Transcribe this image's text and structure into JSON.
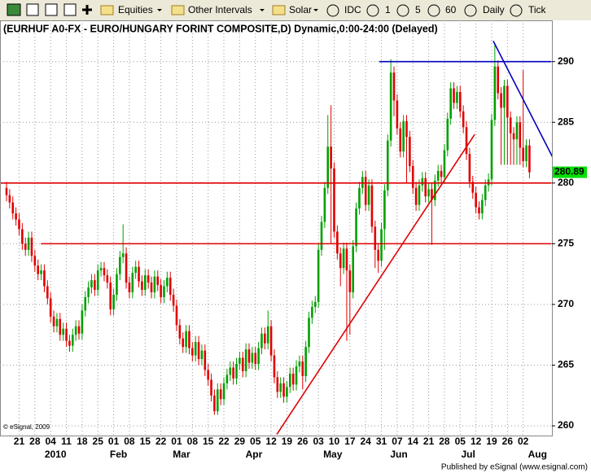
{
  "toolbar": {
    "items": [
      "Equities",
      "Other Intervals",
      "Solar",
      "IDC",
      "1",
      "5",
      "60",
      "Daily",
      "Tick"
    ]
  },
  "footer": "Published by eSignal (www.esignal.com)",
  "chart_data": {
    "type": "candlestick",
    "title": "(EURHUF A0-FX - EURO/HUNGARY FORINT COMPOSITE,D) Dynamic,0:00-24:00 (Delayed)",
    "copyright": "© eSignal, 2009",
    "up_color": "#00a000",
    "down_color": "#e00000",
    "grid": true,
    "ylim": [
      259.2,
      293.4
    ],
    "yticks": [
      260,
      265,
      270,
      275,
      280,
      285,
      290
    ],
    "categories": [
      null,
      null,
      null,
      null,
      "21",
      null,
      null,
      null,
      null,
      "28",
      null,
      null,
      null,
      null,
      "04",
      null,
      null,
      null,
      null,
      "11",
      null,
      null,
      null,
      null,
      "18",
      null,
      null,
      null,
      null,
      "25",
      null,
      null,
      null,
      null,
      "01",
      null,
      null,
      null,
      null,
      "08",
      null,
      null,
      null,
      null,
      "15",
      null,
      null,
      null,
      null,
      "22",
      null,
      null,
      null,
      null,
      "01",
      null,
      null,
      null,
      null,
      "08",
      null,
      null,
      null,
      null,
      "15",
      null,
      null,
      null,
      null,
      "22",
      null,
      null,
      null,
      null,
      "29",
      null,
      null,
      null,
      null,
      "05",
      null,
      null,
      null,
      null,
      "12",
      null,
      null,
      null,
      null,
      "19",
      null,
      null,
      null,
      null,
      "26",
      null,
      null,
      null,
      null,
      "03",
      null,
      null,
      null,
      null,
      "10",
      null,
      null,
      null,
      null,
      "17",
      null,
      null,
      null,
      null,
      "24",
      null,
      null,
      null,
      null,
      "31",
      null,
      null,
      null,
      null,
      "07",
      null,
      null,
      null,
      null,
      "14",
      null,
      null,
      null,
      null,
      "21",
      null,
      null,
      null,
      null,
      "28",
      null,
      null,
      null,
      null,
      "05",
      null,
      null,
      null,
      null,
      "12",
      null,
      null,
      null,
      null,
      "19",
      null,
      null,
      null,
      null,
      "26",
      null,
      null,
      null,
      null,
      "02",
      null,
      null
    ],
    "category_months": [
      null,
      null,
      null,
      null,
      null,
      null,
      null,
      null,
      null,
      null,
      null,
      null,
      null,
      null,
      "2010",
      null,
      null,
      null,
      null,
      null,
      null,
      null,
      null,
      null,
      null,
      null,
      null,
      null,
      null,
      null,
      null,
      null,
      null,
      null,
      "Feb",
      null,
      null,
      null,
      null,
      null,
      null,
      null,
      null,
      null,
      null,
      null,
      null,
      null,
      null,
      null,
      null,
      null,
      null,
      null,
      "Mar",
      null,
      null,
      null,
      null,
      null,
      null,
      null,
      null,
      null,
      null,
      null,
      null,
      null,
      null,
      null,
      null,
      null,
      null,
      null,
      null,
      null,
      null,
      "Apr",
      null,
      null,
      null,
      null,
      null,
      null,
      null,
      null,
      null,
      null,
      null,
      null,
      null,
      null,
      null,
      null,
      null,
      null,
      null,
      null,
      null,
      null,
      null,
      null,
      "May",
      null,
      null,
      null,
      null,
      null,
      null,
      null,
      null,
      null,
      null,
      null,
      null,
      null,
      null,
      null,
      null,
      null,
      null,
      null,
      null,
      "Jun",
      null,
      null,
      null,
      null,
      null,
      null,
      null,
      null,
      null,
      null,
      null,
      null,
      null,
      null,
      null,
      null,
      null,
      null,
      null,
      null,
      null,
      "Jul",
      null,
      null,
      null,
      null,
      null,
      null,
      null,
      null,
      null,
      null,
      null,
      null,
      null,
      null,
      null,
      null,
      null,
      null,
      null,
      null,
      null,
      "Aug",
      null,
      null
    ],
    "candles": {
      "open": [
        279.6,
        279.0,
        278.4,
        277.5,
        277.0,
        276.2,
        275.0,
        274.5,
        275.5,
        274.0,
        273.2,
        272.5,
        272.8,
        271.5,
        270.5,
        269.0,
        268.2,
        268.8,
        267.5,
        268.0,
        267.0,
        266.6,
        267.5,
        268.2,
        267.6,
        269.5,
        270.6,
        271.4,
        272.0,
        271.2,
        272.8,
        273.0,
        272.4,
        271.8,
        269.6,
        270.8,
        272.5,
        273.9,
        274.2,
        271.8,
        271.0,
        272.6,
        273.1,
        271.9,
        271.2,
        272.4,
        271.8,
        271.0,
        272.3,
        271.6,
        270.6,
        271.5,
        272.2,
        270.8,
        269.9,
        268.3,
        267.2,
        266.5,
        267.8,
        266.4,
        265.8,
        266.9,
        265.5,
        266.2,
        264.6,
        263.8,
        262.5,
        261.2,
        263.0,
        262.2,
        263.5,
        264.2,
        264.8,
        263.9,
        265.1,
        265.6,
        264.5,
        266.3,
        265.2,
        266.0,
        265.1,
        266.4,
        267.6,
        266.8,
        268.2,
        265.8,
        264.0,
        262.8,
        263.5,
        262.4,
        263.2,
        264.3,
        263.4,
        264.9,
        265.3,
        264.1,
        266.5,
        268.9,
        269.8,
        270.2,
        274.5,
        276.8,
        279.6,
        283.0,
        281.2,
        276.0,
        274.2,
        273.0,
        274.6,
        272.8,
        271.0,
        274.8,
        277.9,
        279.6,
        280.5,
        278.2,
        279.8,
        276.4,
        274.5,
        273.6,
        276.2,
        279.4,
        283.5,
        289.1,
        286.8,
        284.5,
        282.6,
        285.1,
        283.8,
        281.4,
        279.6,
        278.2,
        279.8,
        280.4,
        278.9,
        279.5,
        278.6,
        280.2,
        281.0,
        280.5,
        282.7,
        285.3,
        287.8,
        286.6,
        287.5,
        285.9,
        284.6,
        282.4,
        280.1,
        279.2,
        278.0,
        277.5,
        278.6,
        279.8,
        280.3,
        285.2,
        289.6,
        287.4,
        286.2,
        288.0,
        285.4,
        284.1,
        283.6,
        285.0,
        282.9,
        281.8,
        283.1
      ],
      "high": [
        280.1,
        279.5,
        278.9,
        278.0,
        277.5,
        276.7,
        275.5,
        276.0,
        276.0,
        274.5,
        273.7,
        273.3,
        273.3,
        272.0,
        271.0,
        269.5,
        269.3,
        269.3,
        268.5,
        268.5,
        267.5,
        268.0,
        268.7,
        268.7,
        270.0,
        271.1,
        271.9,
        272.5,
        272.5,
        273.3,
        273.5,
        273.5,
        272.9,
        272.3,
        271.3,
        273.0,
        274.4,
        276.6,
        274.7,
        272.3,
        273.1,
        273.6,
        273.6,
        272.4,
        272.9,
        272.9,
        272.3,
        272.8,
        272.8,
        272.1,
        272.0,
        272.7,
        272.7,
        271.3,
        270.4,
        268.8,
        267.7,
        268.3,
        268.3,
        266.9,
        267.4,
        267.4,
        266.7,
        266.7,
        265.1,
        264.3,
        263.0,
        263.5,
        263.5,
        264.0,
        264.7,
        265.3,
        265.3,
        265.6,
        266.1,
        266.1,
        266.8,
        266.8,
        266.5,
        266.5,
        266.9,
        268.1,
        268.1,
        269.5,
        268.7,
        266.3,
        264.5,
        264.0,
        264.0,
        263.7,
        264.8,
        264.8,
        265.4,
        265.8,
        265.8,
        267.0,
        269.4,
        270.3,
        270.7,
        275.0,
        277.3,
        280.1,
        285.6,
        286.4,
        281.7,
        276.5,
        274.7,
        275.1,
        275.1,
        273.3,
        275.3,
        278.4,
        280.1,
        281.0,
        281.0,
        280.3,
        280.3,
        276.9,
        275.0,
        276.7,
        279.9,
        284.0,
        290.2,
        289.6,
        287.3,
        285.0,
        285.6,
        285.6,
        284.3,
        281.9,
        280.1,
        280.3,
        280.9,
        280.9,
        280.0,
        280.0,
        280.7,
        281.5,
        281.5,
        283.2,
        285.8,
        288.3,
        288.3,
        288.0,
        288.0,
        286.4,
        285.1,
        282.9,
        280.6,
        279.7,
        278.5,
        279.1,
        280.3,
        280.8,
        285.7,
        291.5,
        290.1,
        287.9,
        288.5,
        288.5,
        285.9,
        284.6,
        285.5,
        285.5,
        289.3,
        283.6,
        283.6
      ],
      "low": [
        278.5,
        277.9,
        277.0,
        276.5,
        275.7,
        274.5,
        274.0,
        274.0,
        273.5,
        272.7,
        272.0,
        272.0,
        271.0,
        270.0,
        268.5,
        267.7,
        267.7,
        267.0,
        267.0,
        266.5,
        266.1,
        266.1,
        267.0,
        267.1,
        267.1,
        269.0,
        270.1,
        270.9,
        270.7,
        270.7,
        272.3,
        271.9,
        271.3,
        269.1,
        269.1,
        270.3,
        272.0,
        273.4,
        271.3,
        270.5,
        270.5,
        272.1,
        271.4,
        270.7,
        270.7,
        271.3,
        270.5,
        270.5,
        271.1,
        270.1,
        270.1,
        271.0,
        270.3,
        269.4,
        267.8,
        266.7,
        266.0,
        266.0,
        265.9,
        265.3,
        265.3,
        265.0,
        265.0,
        264.1,
        263.3,
        262.0,
        260.9,
        260.9,
        261.7,
        261.7,
        263.0,
        263.7,
        263.4,
        263.4,
        264.6,
        264.0,
        264.0,
        264.7,
        264.7,
        264.6,
        264.6,
        265.9,
        266.3,
        266.3,
        265.3,
        263.5,
        262.3,
        262.3,
        261.9,
        261.9,
        262.7,
        262.9,
        262.9,
        264.4,
        263.0,
        263.6,
        266.0,
        268.4,
        269.3,
        269.7,
        274.0,
        276.3,
        279.1,
        275.0,
        275.5,
        273.7,
        271.5,
        272.5,
        267.0,
        267.5,
        270.5,
        274.3,
        277.4,
        279.1,
        277.7,
        277.7,
        275.9,
        273.0,
        272.6,
        273.1,
        274.5,
        278.9,
        283.0,
        285.5,
        284.0,
        282.1,
        282.1,
        280.0,
        280.9,
        279.1,
        277.7,
        277.7,
        279.3,
        278.4,
        278.4,
        274.9,
        278.1,
        279.7,
        280.0,
        280.0,
        282.2,
        284.8,
        286.1,
        286.1,
        285.4,
        284.1,
        281.9,
        279.6,
        278.7,
        277.5,
        277.0,
        277.0,
        278.1,
        279.3,
        279.8,
        284.7,
        286.9,
        281.5,
        281.5,
        281.5,
        281.5,
        281.5,
        281.5,
        281.5,
        281.3,
        281.3,
        280.4
      ],
      "close": [
        279.0,
        278.4,
        277.5,
        277.0,
        276.2,
        275.0,
        274.5,
        275.5,
        274.0,
        273.2,
        272.5,
        272.8,
        271.5,
        270.5,
        269.0,
        268.2,
        268.8,
        267.5,
        268.0,
        267.0,
        266.6,
        267.5,
        268.2,
        267.6,
        269.5,
        270.6,
        271.4,
        272.0,
        271.2,
        272.8,
        273.0,
        272.4,
        271.8,
        269.6,
        270.8,
        272.5,
        273.9,
        274.2,
        271.8,
        271.0,
        272.6,
        273.1,
        271.9,
        271.2,
        272.4,
        271.8,
        271.0,
        272.3,
        271.6,
        270.6,
        271.5,
        272.2,
        270.8,
        269.9,
        268.3,
        267.2,
        266.5,
        267.8,
        266.4,
        265.8,
        266.9,
        265.5,
        266.2,
        264.6,
        263.8,
        262.5,
        261.2,
        263.0,
        262.2,
        263.5,
        264.2,
        264.8,
        263.9,
        265.1,
        265.6,
        264.5,
        266.3,
        265.2,
        266.0,
        265.1,
        266.4,
        267.6,
        266.8,
        268.2,
        265.8,
        264.0,
        262.8,
        263.5,
        262.4,
        263.2,
        264.3,
        263.4,
        264.9,
        265.3,
        264.1,
        266.5,
        268.9,
        269.8,
        270.2,
        274.5,
        276.8,
        279.6,
        283.0,
        281.2,
        276.0,
        274.2,
        273.0,
        274.6,
        272.8,
        271.0,
        274.8,
        277.9,
        279.6,
        280.5,
        278.2,
        279.8,
        276.4,
        274.5,
        273.6,
        276.2,
        279.4,
        283.5,
        289.1,
        286.8,
        284.5,
        282.6,
        285.1,
        283.8,
        281.4,
        279.6,
        278.2,
        279.8,
        280.4,
        278.9,
        279.5,
        278.6,
        280.2,
        281.0,
        280.5,
        282.7,
        285.3,
        287.8,
        286.6,
        287.5,
        285.9,
        284.6,
        282.4,
        280.1,
        279.2,
        278.0,
        277.5,
        278.6,
        279.8,
        280.3,
        285.2,
        289.6,
        287.4,
        286.2,
        288.0,
        285.4,
        284.1,
        283.6,
        285.0,
        282.9,
        281.8,
        283.1,
        280.89
      ]
    },
    "last_price_color": "#00e000",
    "trend_lines": [
      {
        "color": "#e00000",
        "x": [
          -2,
          173
        ],
        "y": [
          280,
          280
        ]
      },
      {
        "color": "#e00000",
        "x": [
          10.9,
          173
        ],
        "y": [
          275,
          275
        ]
      },
      {
        "color": "#0000c0",
        "x": [
          118.3,
          173
        ],
        "y": [
          290,
          290
        ]
      },
      {
        "color": "#e00000",
        "x": [
          85.8,
          148.6
        ],
        "y": [
          259.3,
          284.0
        ]
      },
      {
        "color": "#0000c0",
        "x": [
          154.5,
          174.2
        ],
        "y": [
          291.7,
          281.7
        ]
      }
    ]
  }
}
